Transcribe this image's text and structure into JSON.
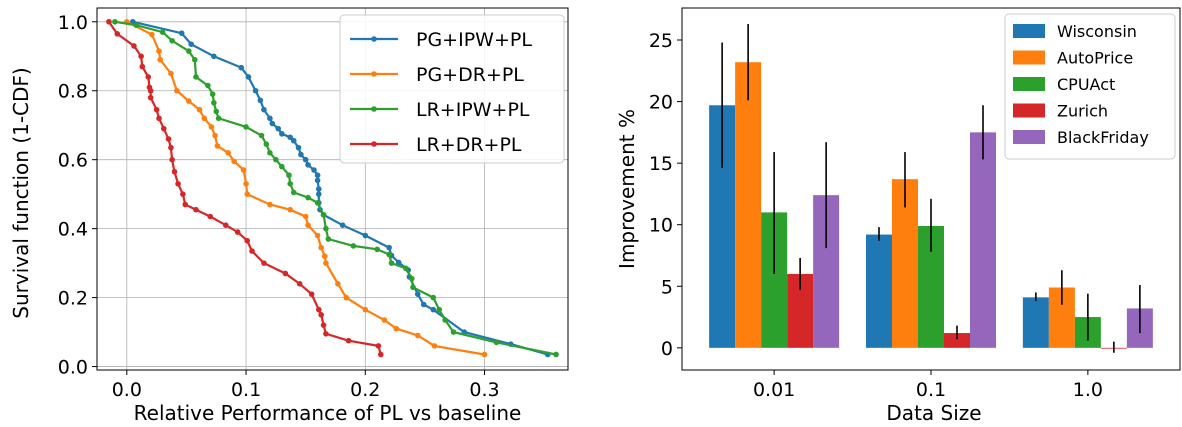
{
  "chart_data": [
    {
      "type": "line",
      "xlabel": "Relative Performance of PL vs baseline",
      "ylabel": "Survival function (1-CDF)",
      "xlim": [
        -0.025,
        0.37
      ],
      "ylim": [
        -0.01,
        1.04
      ],
      "xticks": [
        0.0,
        0.1,
        0.2,
        0.3
      ],
      "xtick_labels": [
        "0.0",
        "0.1",
        "0.2",
        "0.3"
      ],
      "yticks": [
        0.0,
        0.2,
        0.4,
        0.6,
        0.8,
        1.0
      ],
      "ytick_labels": [
        "0.0",
        "0.2",
        "0.4",
        "0.6",
        "0.8",
        "1.0"
      ],
      "grid": true,
      "legend_position": "top-right",
      "series": [
        {
          "name": "PG+IPW+PL",
          "color": "#1f77b4",
          "points": [
            [
              0.005,
              1.0
            ],
            [
              0.046,
              0.967
            ],
            [
              0.054,
              0.935
            ],
            [
              0.073,
              0.9
            ],
            [
              0.096,
              0.867
            ],
            [
              0.102,
              0.84
            ],
            [
              0.108,
              0.8
            ],
            [
              0.112,
              0.772
            ],
            [
              0.115,
              0.745
            ],
            [
              0.12,
              0.72
            ],
            [
              0.122,
              0.705
            ],
            [
              0.127,
              0.69
            ],
            [
              0.13,
              0.675
            ],
            [
              0.137,
              0.665
            ],
            [
              0.14,
              0.655
            ],
            [
              0.144,
              0.635
            ],
            [
              0.146,
              0.615
            ],
            [
              0.15,
              0.6
            ],
            [
              0.152,
              0.585
            ],
            [
              0.157,
              0.57
            ],
            [
              0.16,
              0.555
            ],
            [
              0.16,
              0.54
            ],
            [
              0.161,
              0.515
            ],
            [
              0.161,
              0.5
            ],
            [
              0.161,
              0.475
            ],
            [
              0.162,
              0.455
            ],
            [
              0.165,
              0.44
            ],
            [
              0.181,
              0.41
            ],
            [
              0.2,
              0.38
            ],
            [
              0.22,
              0.345
            ],
            [
              0.222,
              0.322
            ],
            [
              0.228,
              0.302
            ],
            [
              0.236,
              0.28
            ],
            [
              0.237,
              0.26
            ],
            [
              0.244,
              0.21
            ],
            [
              0.249,
              0.18
            ],
            [
              0.257,
              0.165
            ],
            [
              0.283,
              0.1
            ],
            [
              0.322,
              0.065
            ],
            [
              0.353,
              0.035
            ]
          ]
        },
        {
          "name": "PG+DR+PL",
          "color": "#ff7f0e",
          "points": [
            [
              0.0,
              1.0
            ],
            [
              0.021,
              0.963
            ],
            [
              0.027,
              0.915
            ],
            [
              0.028,
              0.89
            ],
            [
              0.037,
              0.85
            ],
            [
              0.042,
              0.8
            ],
            [
              0.052,
              0.77
            ],
            [
              0.061,
              0.745
            ],
            [
              0.065,
              0.72
            ],
            [
              0.071,
              0.695
            ],
            [
              0.074,
              0.67
            ],
            [
              0.076,
              0.64
            ],
            [
              0.085,
              0.62
            ],
            [
              0.09,
              0.595
            ],
            [
              0.098,
              0.57
            ],
            [
              0.1,
              0.53
            ],
            [
              0.101,
              0.5
            ],
            [
              0.12,
              0.47
            ],
            [
              0.137,
              0.455
            ],
            [
              0.15,
              0.435
            ],
            [
              0.152,
              0.41
            ],
            [
              0.16,
              0.38
            ],
            [
              0.163,
              0.345
            ],
            [
              0.166,
              0.32
            ],
            [
              0.167,
              0.3
            ],
            [
              0.177,
              0.24
            ],
            [
              0.184,
              0.2
            ],
            [
              0.2,
              0.165
            ],
            [
              0.216,
              0.135
            ],
            [
              0.226,
              0.11
            ],
            [
              0.244,
              0.09
            ],
            [
              0.258,
              0.06
            ],
            [
              0.3,
              0.035
            ]
          ]
        },
        {
          "name": "LR+IPW+PL",
          "color": "#2ca02c",
          "points": [
            [
              -0.01,
              1.0
            ],
            [
              0.008,
              0.99
            ],
            [
              0.03,
              0.97
            ],
            [
              0.038,
              0.945
            ],
            [
              0.052,
              0.915
            ],
            [
              0.057,
              0.89
            ],
            [
              0.058,
              0.84
            ],
            [
              0.068,
              0.815
            ],
            [
              0.072,
              0.79
            ],
            [
              0.073,
              0.765
            ],
            [
              0.075,
              0.74
            ],
            [
              0.077,
              0.72
            ],
            [
              0.1,
              0.695
            ],
            [
              0.113,
              0.67
            ],
            [
              0.117,
              0.645
            ],
            [
              0.12,
              0.62
            ],
            [
              0.125,
              0.6
            ],
            [
              0.13,
              0.58
            ],
            [
              0.136,
              0.555
            ],
            [
              0.137,
              0.53
            ],
            [
              0.14,
              0.505
            ],
            [
              0.152,
              0.49
            ],
            [
              0.16,
              0.475
            ],
            [
              0.165,
              0.44
            ],
            [
              0.167,
              0.4
            ],
            [
              0.169,
              0.37
            ],
            [
              0.19,
              0.35
            ],
            [
              0.21,
              0.34
            ],
            [
              0.22,
              0.325
            ],
            [
              0.222,
              0.3
            ],
            [
              0.234,
              0.285
            ],
            [
              0.239,
              0.255
            ],
            [
              0.24,
              0.23
            ],
            [
              0.257,
              0.2
            ],
            [
              0.262,
              0.165
            ],
            [
              0.267,
              0.135
            ],
            [
              0.274,
              0.1
            ],
            [
              0.31,
              0.07
            ],
            [
              0.36,
              0.035
            ]
          ]
        },
        {
          "name": "LR+DR+PL",
          "color": "#d62728",
          "points": [
            [
              -0.015,
              1.0
            ],
            [
              -0.008,
              0.965
            ],
            [
              0.006,
              0.93
            ],
            [
              0.012,
              0.9
            ],
            [
              0.013,
              0.87
            ],
            [
              0.018,
              0.84
            ],
            [
              0.019,
              0.81
            ],
            [
              0.02,
              0.8
            ],
            [
              0.02,
              0.78
            ],
            [
              0.025,
              0.745
            ],
            [
              0.027,
              0.72
            ],
            [
              0.031,
              0.69
            ],
            [
              0.035,
              0.66
            ],
            [
              0.037,
              0.635
            ],
            [
              0.038,
              0.6
            ],
            [
              0.04,
              0.565
            ],
            [
              0.043,
              0.53
            ],
            [
              0.047,
              0.5
            ],
            [
              0.049,
              0.47
            ],
            [
              0.058,
              0.455
            ],
            [
              0.07,
              0.435
            ],
            [
              0.083,
              0.41
            ],
            [
              0.093,
              0.39
            ],
            [
              0.101,
              0.365
            ],
            [
              0.105,
              0.335
            ],
            [
              0.115,
              0.3
            ],
            [
              0.133,
              0.27
            ],
            [
              0.145,
              0.24
            ],
            [
              0.155,
              0.21
            ],
            [
              0.161,
              0.165
            ],
            [
              0.163,
              0.15
            ],
            [
              0.165,
              0.12
            ],
            [
              0.167,
              0.095
            ],
            [
              0.186,
              0.075
            ],
            [
              0.211,
              0.06
            ],
            [
              0.213,
              0.035
            ]
          ]
        }
      ]
    },
    {
      "type": "bar",
      "xlabel": "Data Size",
      "ylabel": "Improvement %",
      "categories": [
        "0.01",
        "0.1",
        "1.0"
      ],
      "ylim": [
        -1.8,
        27.6
      ],
      "yticks": [
        0,
        5,
        10,
        15,
        20,
        25
      ],
      "ytick_labels": [
        "0",
        "5",
        "10",
        "15",
        "20",
        "25"
      ],
      "grid": false,
      "legend_position": "top-right",
      "series": [
        {
          "name": "Wisconsin",
          "color": "#1f77b4",
          "values": [
            19.7,
            9.2,
            4.1
          ],
          "err_low": [
            14.6,
            8.7,
            3.8
          ],
          "err_high": [
            24.8,
            9.8,
            4.5
          ]
        },
        {
          "name": "AutoPrice",
          "color": "#ff7f0e",
          "values": [
            23.2,
            13.7,
            4.9
          ],
          "err_low": [
            20.1,
            11.4,
            3.5
          ],
          "err_high": [
            26.3,
            15.9,
            6.3
          ]
        },
        {
          "name": "CPUAct",
          "color": "#2ca02c",
          "values": [
            11.0,
            9.9,
            2.5
          ],
          "err_low": [
            6.0,
            7.8,
            0.6
          ],
          "err_high": [
            15.9,
            12.1,
            4.4
          ]
        },
        {
          "name": "Zurich",
          "color": "#d62728",
          "values": [
            6.0,
            1.2,
            -0.05
          ],
          "err_low": [
            4.7,
            0.7,
            -0.4
          ],
          "err_high": [
            7.3,
            1.8,
            0.5
          ]
        },
        {
          "name": "BlackFriday",
          "color": "#9467bd",
          "values": [
            12.4,
            17.5,
            3.2
          ],
          "err_low": [
            8.1,
            15.3,
            1.2
          ],
          "err_high": [
            16.7,
            19.7,
            5.1
          ]
        }
      ]
    }
  ]
}
